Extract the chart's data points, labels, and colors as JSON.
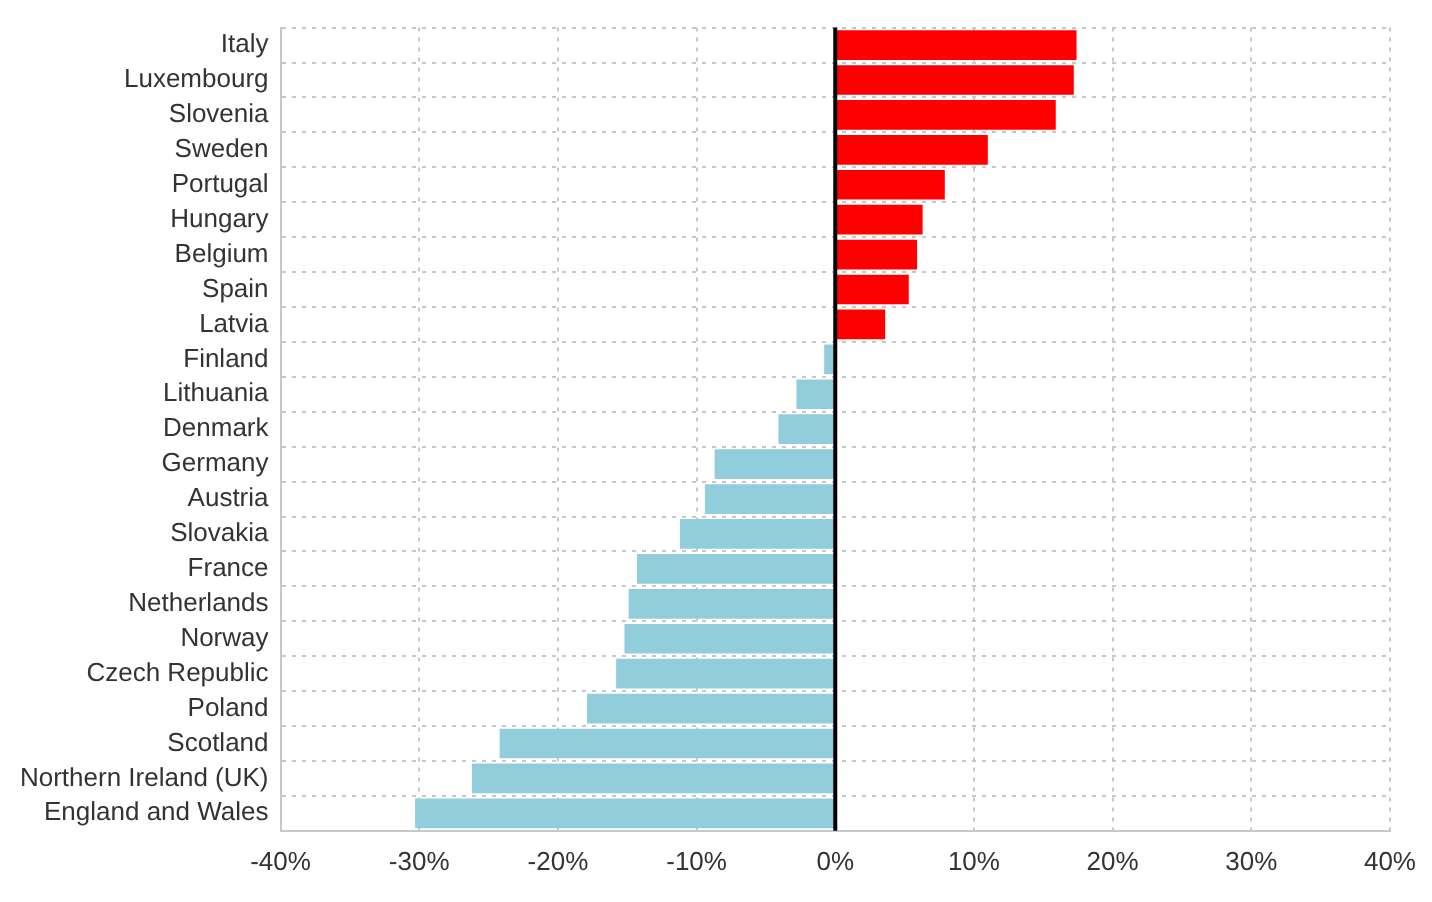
{
  "chart_data": {
    "type": "bar",
    "orientation": "horizontal",
    "categories": [
      "Italy",
      "Luxembourg",
      "Slovenia",
      "Sweden",
      "Portugal",
      "Hungary",
      "Belgium",
      "Spain",
      "Latvia",
      "Finland",
      "Lithuania",
      "Denmark",
      "Germany",
      "Austria",
      "Slovakia",
      "France",
      "Netherlands",
      "Norway",
      "Czech Republic",
      "Poland",
      "Scotland",
      "Northern Ireland (UK)",
      "England and Wales"
    ],
    "values": [
      17.4,
      17.2,
      15.9,
      11.0,
      7.9,
      6.3,
      5.9,
      5.3,
      3.6,
      -0.8,
      -2.8,
      -4.1,
      -8.7,
      -9.4,
      -11.2,
      -14.3,
      -14.9,
      -15.2,
      -15.8,
      -17.9,
      -24.2,
      -26.2,
      -30.3
    ],
    "colors": [
      "#ff0000",
      "#ff0000",
      "#ff0000",
      "#ff0000",
      "#ff0000",
      "#ff0000",
      "#ff0000",
      "#ff0000",
      "#ff0000",
      "#92cddc",
      "#92cddc",
      "#92cddc",
      "#92cddc",
      "#92cddc",
      "#92cddc",
      "#92cddc",
      "#92cddc",
      "#92cddc",
      "#92cddc",
      "#92cddc",
      "#92cddc",
      "#92cddc",
      "#92cddc"
    ],
    "xlim": [
      -40,
      40
    ],
    "xticks": [
      {
        "value": -40,
        "label": "-40%"
      },
      {
        "value": -30,
        "label": "-30%"
      },
      {
        "value": -20,
        "label": "-20%"
      },
      {
        "value": -10,
        "label": "-10%"
      },
      {
        "value": 0,
        "label": "0%"
      },
      {
        "value": 10,
        "label": "10%"
      },
      {
        "value": 20,
        "label": "20%"
      },
      {
        "value": 30,
        "label": "30%"
      },
      {
        "value": 40,
        "label": "40%"
      }
    ],
    "ref_lines": [
      {
        "axis": "x",
        "value": 0,
        "color": "#000000"
      }
    ],
    "grid": true,
    "legend": false
  }
}
